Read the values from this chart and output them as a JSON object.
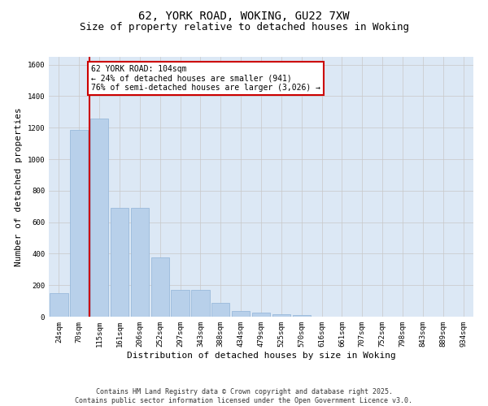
{
  "title_line1": "62, YORK ROAD, WOKING, GU22 7XW",
  "title_line2": "Size of property relative to detached houses in Woking",
  "xlabel": "Distribution of detached houses by size in Woking",
  "ylabel": "Number of detached properties",
  "categories": [
    "24sqm",
    "70sqm",
    "115sqm",
    "161sqm",
    "206sqm",
    "252sqm",
    "297sqm",
    "343sqm",
    "388sqm",
    "434sqm",
    "479sqm",
    "525sqm",
    "570sqm",
    "616sqm",
    "661sqm",
    "707sqm",
    "752sqm",
    "798sqm",
    "843sqm",
    "889sqm",
    "934sqm"
  ],
  "values": [
    150,
    1185,
    1260,
    690,
    690,
    375,
    170,
    170,
    90,
    35,
    28,
    18,
    10,
    0,
    0,
    0,
    0,
    0,
    0,
    0,
    0
  ],
  "bar_color": "#b8d0ea",
  "bar_edge_color": "#90b4d8",
  "redline_x": 1.5,
  "annotation_text": "62 YORK ROAD: 104sqm\n← 24% of detached houses are smaller (941)\n76% of semi-detached houses are larger (3,026) →",
  "annotation_box_color": "#ffffff",
  "annotation_box_edge_color": "#cc0000",
  "ylim": [
    0,
    1650
  ],
  "yticks": [
    0,
    200,
    400,
    600,
    800,
    1000,
    1200,
    1400,
    1600
  ],
  "grid_color": "#c8c8c8",
  "background_color": "#dce8f5",
  "fig_background_color": "#ffffff",
  "footer_line1": "Contains HM Land Registry data © Crown copyright and database right 2025.",
  "footer_line2": "Contains public sector information licensed under the Open Government Licence v3.0.",
  "title_fontsize": 10,
  "subtitle_fontsize": 9,
  "axis_label_fontsize": 8,
  "tick_fontsize": 6.5,
  "annotation_fontsize": 7,
  "footer_fontsize": 6
}
